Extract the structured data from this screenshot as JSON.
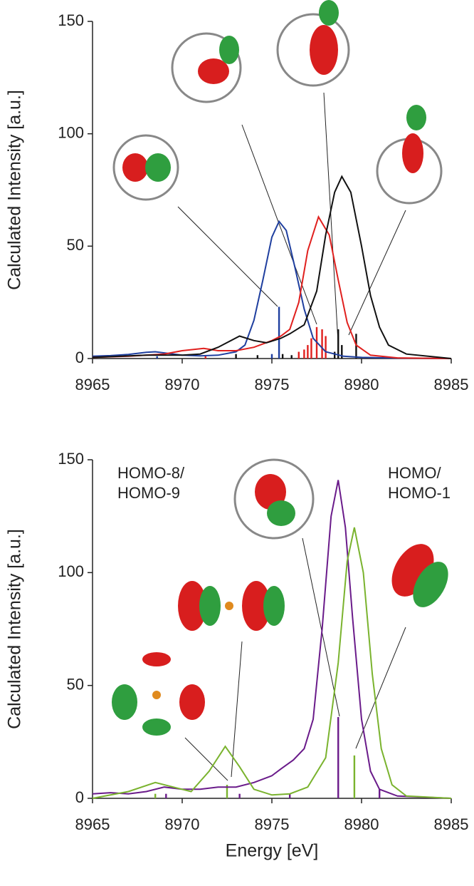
{
  "chart_data": [
    {
      "type": "line",
      "y_label": "Calculated Intensity [a.u.]",
      "xlim": [
        8965,
        8985
      ],
      "xticks": [
        8965,
        8970,
        8975,
        8980,
        8985
      ],
      "ylim": [
        0,
        150
      ],
      "yticks": [
        0,
        50,
        100,
        150
      ],
      "series": [
        {
          "color": "#1f3f9f",
          "x": [
            8965,
            8966,
            8967,
            8968,
            8968.5,
            8969,
            8970,
            8971,
            8972,
            8973,
            8973.5,
            8974,
            8974.5,
            8975,
            8975.4,
            8975.8,
            8976.3,
            8976.8,
            8977.3,
            8978,
            8979,
            8980,
            8982,
            8985
          ],
          "values": [
            1,
            1.3,
            1.8,
            2.8,
            3,
            2.5,
            1.5,
            1.2,
            1.5,
            3,
            6,
            17,
            35,
            54,
            61,
            57,
            40,
            22,
            9,
            3,
            1,
            0.5,
            0.2,
            0
          ]
        },
        {
          "color": "#e0201e",
          "x": [
            8965,
            8967,
            8969,
            8970,
            8971.2,
            8972,
            8973,
            8974,
            8975,
            8975.5,
            8976,
            8976.5,
            8977,
            8977.6,
            8978.2,
            8978.7,
            8979.2,
            8979.7,
            8980.5,
            8982,
            8985
          ],
          "values": [
            0.5,
            1,
            2,
            3.5,
            4.5,
            3.5,
            3.5,
            5,
            8,
            10,
            13,
            25,
            48,
            63,
            55,
            35,
            16,
            6,
            1.5,
            0.3,
            0
          ]
        },
        {
          "color": "#111111",
          "x": [
            8965,
            8968,
            8970,
            8971,
            8972,
            8973.2,
            8974,
            8974.7,
            8975.5,
            8976,
            8976.8,
            8977.5,
            8978,
            8978.5,
            8978.9,
            8979.4,
            8980,
            8980.5,
            8981,
            8981.5,
            8982.5,
            8985
          ],
          "values": [
            0.5,
            1.5,
            1.5,
            2,
            5,
            10,
            8,
            7,
            9,
            11,
            15,
            30,
            55,
            74,
            81,
            74,
            50,
            28,
            14,
            6,
            2,
            0
          ]
        }
      ],
      "sticks": [
        {
          "color": "#1f3f9f",
          "x": [
            8975.4,
            8968.6,
            8975.0
          ],
          "values": [
            23,
            1,
            2
          ]
        },
        {
          "color": "#e0201e",
          "x": [
            8976.5,
            8976.8,
            8977.0,
            8977.2,
            8977.5,
            8977.8,
            8978.0,
            8971.3
          ],
          "values": [
            3,
            4,
            6,
            9,
            14,
            13,
            10,
            1
          ]
        },
        {
          "color": "#111111",
          "x": [
            8973.0,
            8974.2,
            8975.6,
            8976.1,
            8978.5,
            8978.7,
            8978.9,
            8979.7
          ],
          "values": [
            2,
            1.5,
            2,
            1.5,
            3,
            13,
            6,
            11
          ]
        }
      ]
    },
    {
      "type": "line",
      "y_label": "Calculated Intensity [a.u.]",
      "x_label": "Energy [eV]",
      "xlim": [
        8965,
        8985
      ],
      "xticks": [
        8965,
        8970,
        8975,
        8980,
        8985
      ],
      "ylim": [
        0,
        150
      ],
      "yticks": [
        0,
        50,
        100,
        150
      ],
      "annotations": [
        {
          "lines": [
            "HOMO-8/",
            "HOMO-9"
          ]
        },
        {
          "lines": [
            "HOMO/",
            "HOMO-1"
          ]
        }
      ],
      "series": [
        {
          "color": "#6a1b8a",
          "x": [
            8965,
            8966,
            8967,
            8968,
            8969,
            8970,
            8971,
            8972,
            8973,
            8974,
            8975,
            8975.5,
            8976.2,
            8976.8,
            8977.3,
            8977.8,
            8978.3,
            8978.7,
            8979.1,
            8979.5,
            8980,
            8980.5,
            8981,
            8982,
            8985
          ],
          "values": [
            2,
            2.5,
            2,
            3,
            5,
            4,
            4,
            5,
            5,
            7,
            10,
            13,
            17,
            22,
            35,
            75,
            125,
            141,
            120,
            80,
            35,
            12,
            4,
            1,
            0
          ]
        },
        {
          "color": "#7ab32e",
          "x": [
            8965,
            8967,
            8968.5,
            8969.5,
            8970.5,
            8971.5,
            8972.4,
            8973.2,
            8974,
            8975,
            8976,
            8977,
            8978,
            8978.7,
            8979.2,
            8979.6,
            8980.1,
            8980.6,
            8981.1,
            8981.7,
            8982.5,
            8985
          ],
          "values": [
            0,
            3,
            7,
            5,
            3,
            12,
            23,
            14,
            4,
            1.5,
            2,
            5,
            18,
            60,
            105,
            120,
            100,
            55,
            22,
            6,
            1,
            0
          ]
        }
      ],
      "sticks": [
        {
          "color": "#6a1b8a",
          "x": [
            8969.1,
            8973.2,
            8976.0,
            8978.7,
            8981.0
          ],
          "values": [
            2,
            2,
            2,
            36,
            4
          ]
        },
        {
          "color": "#7ab32e",
          "x": [
            8968.5,
            8972.5,
            8979.6
          ],
          "values": [
            2,
            6,
            19
          ]
        }
      ]
    }
  ]
}
